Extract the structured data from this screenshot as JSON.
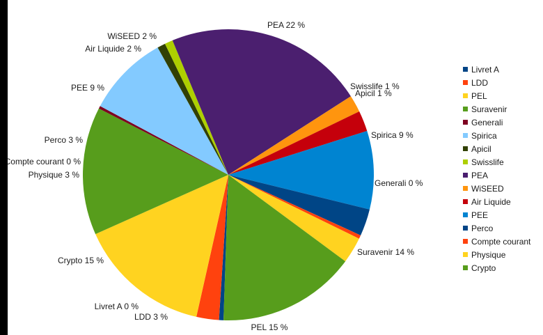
{
  "chart_data": {
    "type": "pie",
    "title": "",
    "legend_position": "right",
    "slices": [
      {
        "name": "Livret A",
        "value": 0.5,
        "label": "Livret A  0 %",
        "color": "#004586"
      },
      {
        "name": "LDD",
        "value": 2.5,
        "label": "LDD  3 %",
        "color": "#ff420e"
      },
      {
        "name": "PEL",
        "value": 14.8,
        "label": "PEL  15 %",
        "color": "#ffd320"
      },
      {
        "name": "Suravenir",
        "value": 14.2,
        "label": "Suravenir  14 %",
        "color": "#579d1c"
      },
      {
        "name": "Generali",
        "value": 0.3,
        "label": "Generali  0 %",
        "color": "#7e0021"
      },
      {
        "name": "Spirica",
        "value": 9.1,
        "label": "Spirica  9 %",
        "color": "#83caff"
      },
      {
        "name": "Apicil",
        "value": 0.9,
        "label": "Apicil  1 %",
        "color": "#314004"
      },
      {
        "name": "Swisslife",
        "value": 0.9,
        "label": "Swisslife  1 %",
        "color": "#aecf00"
      },
      {
        "name": "PEA",
        "value": 22.2,
        "label": "PEA  22 %",
        "color": "#4b1f6f"
      },
      {
        "name": "WiSEED",
        "value": 1.9,
        "label": "WiSEED  2 %",
        "color": "#ff950e"
      },
      {
        "name": "Air Liquide",
        "value": 2.3,
        "label": "Air Liquide  2 %",
        "color": "#c5000b"
      },
      {
        "name": "PEE",
        "value": 8.7,
        "label": "PEE  9 %",
        "color": "#0084d1"
      },
      {
        "name": "Perco",
        "value": 3.0,
        "label": "Perco  3 %",
        "color": "#004586"
      },
      {
        "name": "Compte courant",
        "value": 0.4,
        "label": "Compte courant  0 %",
        "color": "#ff420e"
      },
      {
        "name": "Physique",
        "value": 2.9,
        "label": "Physique  3 %",
        "color": "#ffd320"
      },
      {
        "name": "Crypto",
        "value": 15.4,
        "label": "Crypto  15 %",
        "color": "#579d1c"
      }
    ]
  }
}
